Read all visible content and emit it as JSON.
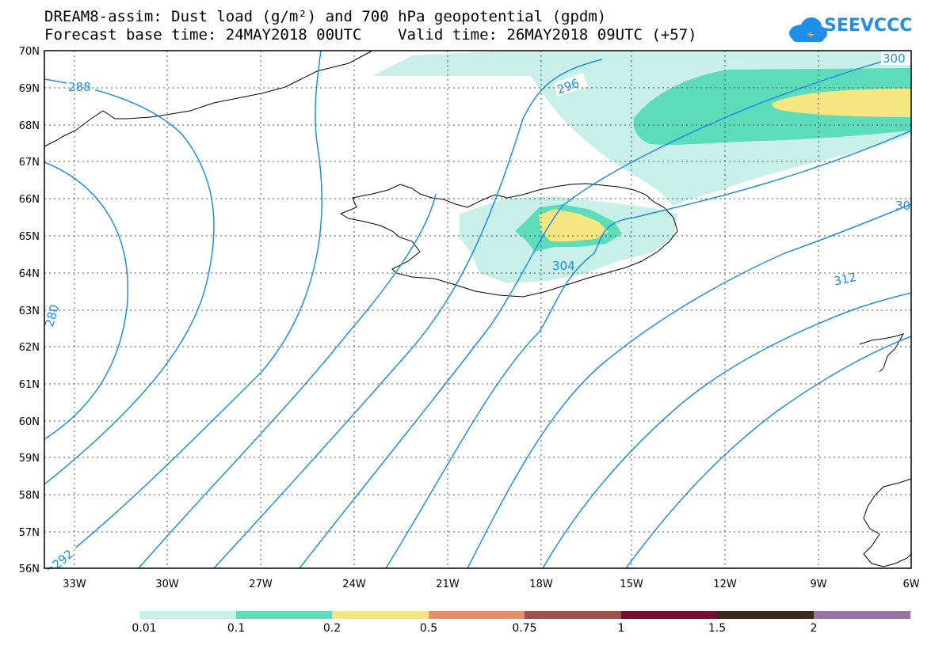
{
  "header": {
    "title_line1": "DREAM8-assim: Dust load (g/m²) and 700 hPa geopotential (gpdm)",
    "title_line2": "Forecast base time: 24MAY2018 00UTC    Valid time: 26MAY2018 09UTC (+57)"
  },
  "logo": {
    "text": "SEEVCCC",
    "icon": "cloud-icon"
  },
  "map": {
    "lon_labels": [
      "33W",
      "30W",
      "27W",
      "24W",
      "21W",
      "18W",
      "15W",
      "12W",
      "9W",
      "6W"
    ],
    "lat_labels": [
      "70N",
      "69N",
      "68N",
      "67N",
      "66N",
      "65N",
      "64N",
      "63N",
      "62N",
      "61N",
      "60N",
      "59N",
      "58N",
      "57N",
      "56N"
    ],
    "contour_labels": [
      "288",
      "296",
      "300",
      "304",
      "312",
      "292",
      "280",
      "30"
    ],
    "colors": {
      "contour": "#1e90e6",
      "level1": "#c8f0e8",
      "level2": "#5cdcb8",
      "level3": "#f5e682"
    }
  },
  "colorbar": {
    "labels": [
      "0.01",
      "0.1",
      "0.2",
      "0.5",
      "0.75",
      "1",
      "1.5",
      "2"
    ],
    "colors": [
      "#c8f0e8",
      "#5cdcb8",
      "#f5e682",
      "#e88c6a",
      "#a0524a",
      "#7a0c2e",
      "#3a2a1a",
      "#9a72a6"
    ]
  }
}
